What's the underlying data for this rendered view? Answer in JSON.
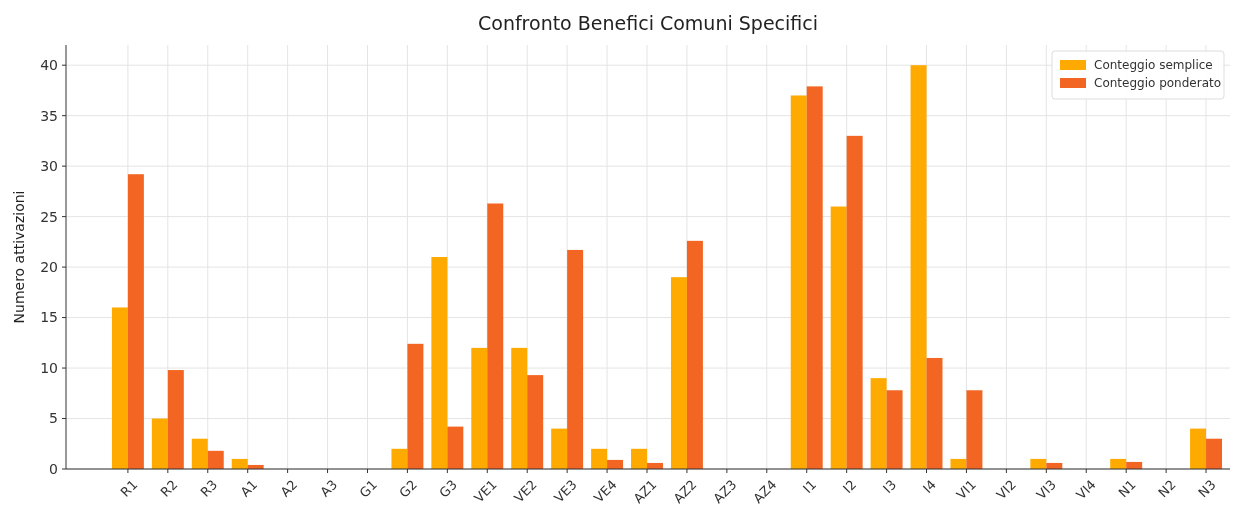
{
  "chart_data": {
    "type": "bar",
    "title": "Confronto Benefici Comuni Specifici",
    "ylabel": "Numero attivazioni",
    "categories": [
      "R1",
      "R2",
      "R3",
      "A1",
      "A2",
      "A3",
      "G1",
      "G2",
      "G3",
      "VE1",
      "VE2",
      "VE3",
      "VE4",
      "AZ1",
      "AZ2",
      "AZ3",
      "AZ4",
      "I1",
      "I2",
      "I3",
      "I4",
      "VI1",
      "VI2",
      "VI3",
      "VI4",
      "N1",
      "N2",
      "N3"
    ],
    "series": [
      {
        "name": "Conteggio semplice",
        "color": "#ffaa00",
        "values": [
          16,
          5,
          3,
          1,
          0,
          0,
          0,
          2,
          21,
          12,
          12,
          4,
          2,
          2,
          19,
          0,
          0,
          37,
          26,
          9,
          40,
          1,
          0,
          1,
          0,
          1,
          0,
          4
        ]
      },
      {
        "name": "Conteggio ponderato",
        "color": "#f26522",
        "values": [
          29.2,
          9.8,
          1.8,
          0.4,
          0,
          0,
          0,
          12.4,
          4.2,
          26.3,
          9.3,
          21.7,
          0.9,
          0.6,
          22.6,
          0,
          0,
          37.9,
          33,
          7.8,
          11,
          7.8,
          0,
          0.6,
          0,
          0.7,
          0,
          3
        ]
      }
    ],
    "ylim": [
      0,
      42
    ],
    "yticks": [
      0,
      5,
      10,
      15,
      20,
      25,
      30,
      35,
      40
    ],
    "grid": true,
    "legend": "top right"
  }
}
